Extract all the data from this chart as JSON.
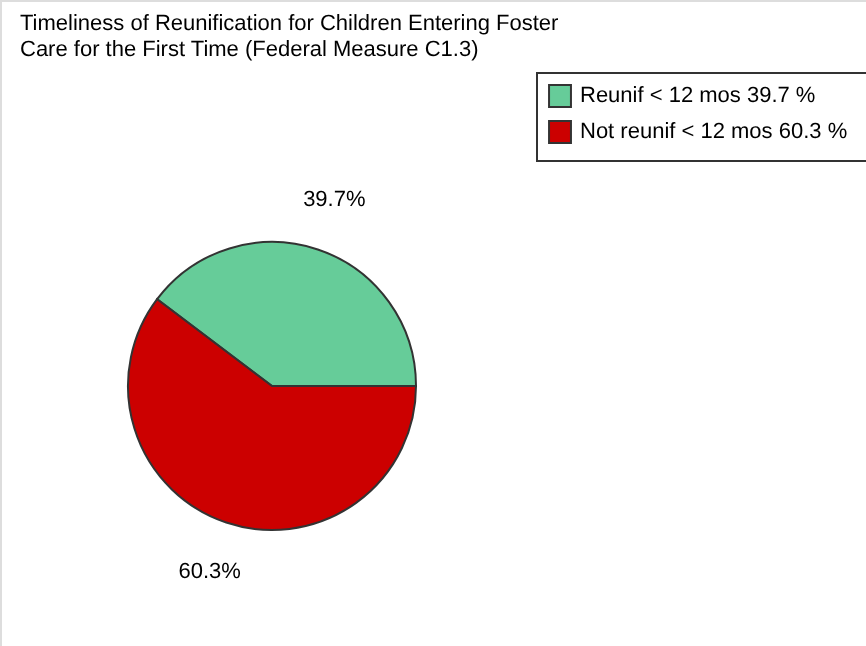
{
  "chart_data": {
    "type": "pie",
    "title": [
      "Timeliness of Reunification for Children Entering Foster",
      "Care for the First Time (Federal Measure C1.3)"
    ],
    "categories": [
      "Reunif < 12 mos  39.7 %",
      "Not reunif < 12 mos  60.3 %"
    ],
    "value_labels": [
      "39.7%",
      "60.3%"
    ],
    "values": [
      39.7,
      60.3
    ],
    "colors": [
      "#66cc99",
      "#cc0000"
    ],
    "legend": "top right"
  }
}
